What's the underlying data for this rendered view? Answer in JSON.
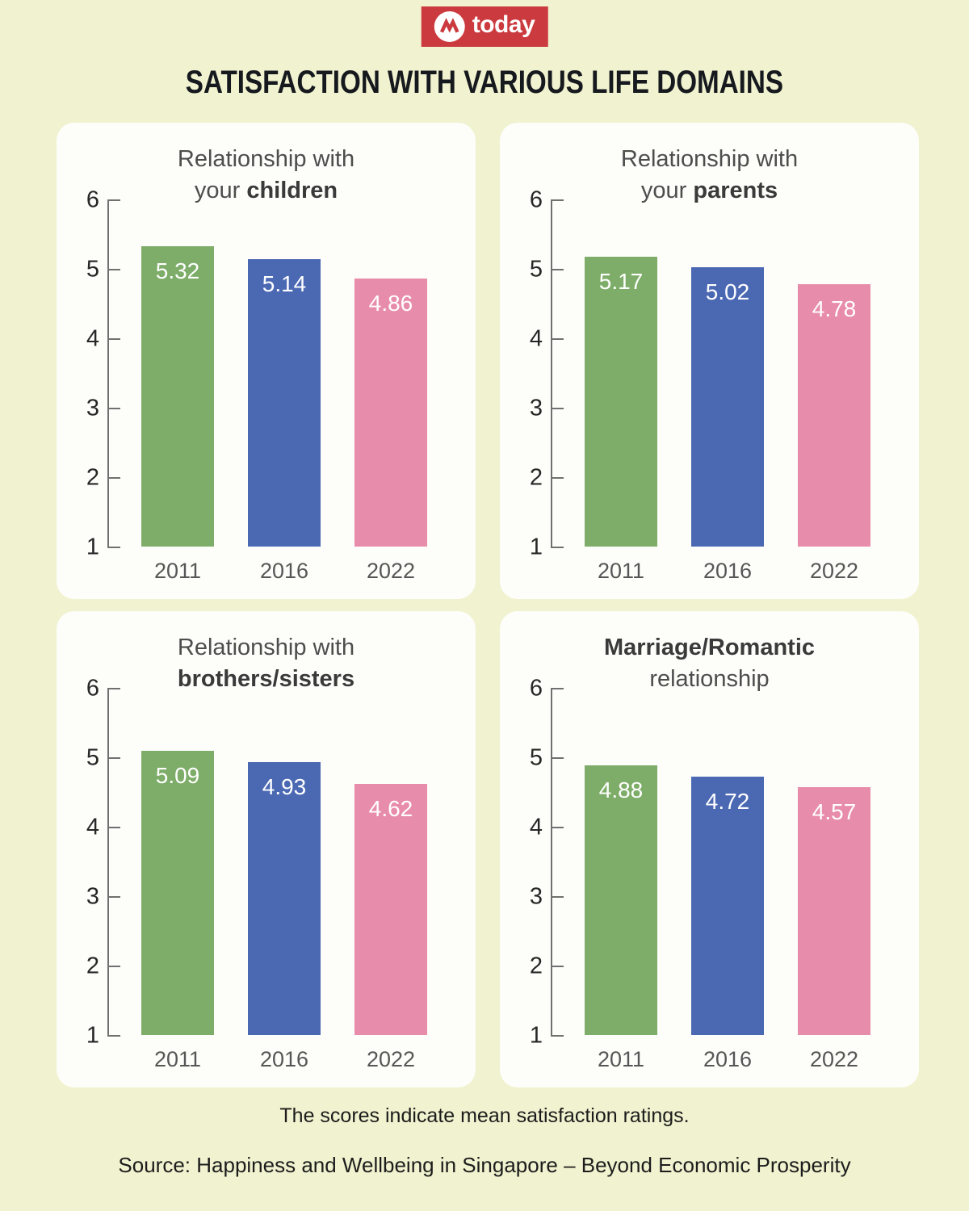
{
  "page": {
    "logo": {
      "brand": "today",
      "background": "#cb3a3e",
      "icon": "mediacorp-m-icon"
    },
    "title": "SATISFACTION WITH VARIOUS LIFE DOMAINS",
    "footnote": "The scores indicate mean satisfaction ratings.",
    "source": "Source: Happiness and Wellbeing in Singapore – Beyond Economic Prosperity",
    "background_color": "#f1f2cf",
    "card_color": "#fdfdfa"
  },
  "series_colors": {
    "2011": "#7dad68",
    "2016": "#4b69b3",
    "2022": "#e88cab"
  },
  "chart_data": [
    {
      "type": "bar",
      "title_lines": [
        [
          {
            "t": "Relationship with",
            "b": false
          }
        ],
        [
          {
            "t": "your ",
            "b": false
          },
          {
            "t": "children",
            "b": true
          }
        ]
      ],
      "categories": [
        "2011",
        "2016",
        "2022"
      ],
      "values": [
        5.32,
        5.14,
        4.86
      ],
      "ylim": [
        1,
        6
      ],
      "yticks": [
        6,
        5,
        4,
        3,
        2,
        1
      ],
      "grid": false,
      "legend": "none"
    },
    {
      "type": "bar",
      "title_lines": [
        [
          {
            "t": "Relationship with",
            "b": false
          }
        ],
        [
          {
            "t": "your ",
            "b": false
          },
          {
            "t": "parents",
            "b": true
          }
        ]
      ],
      "categories": [
        "2011",
        "2016",
        "2022"
      ],
      "values": [
        5.17,
        5.02,
        4.78
      ],
      "ylim": [
        1,
        6
      ],
      "yticks": [
        6,
        5,
        4,
        3,
        2,
        1
      ],
      "grid": false,
      "legend": "none"
    },
    {
      "type": "bar",
      "title_lines": [
        [
          {
            "t": "Relationship with",
            "b": false
          }
        ],
        [
          {
            "t": "brothers/sisters",
            "b": true
          }
        ]
      ],
      "categories": [
        "2011",
        "2016",
        "2022"
      ],
      "values": [
        5.09,
        4.93,
        4.62
      ],
      "ylim": [
        1,
        6
      ],
      "yticks": [
        6,
        5,
        4,
        3,
        2,
        1
      ],
      "grid": false,
      "legend": "none"
    },
    {
      "type": "bar",
      "title_lines": [
        [
          {
            "t": "Marriage/Romantic",
            "b": true
          }
        ],
        [
          {
            "t": "relationship",
            "b": false
          }
        ]
      ],
      "categories": [
        "2011",
        "2016",
        "2022"
      ],
      "values": [
        4.88,
        4.72,
        4.57
      ],
      "ylim": [
        1,
        6
      ],
      "yticks": [
        6,
        5,
        4,
        3,
        2,
        1
      ],
      "grid": false,
      "legend": "none"
    }
  ]
}
